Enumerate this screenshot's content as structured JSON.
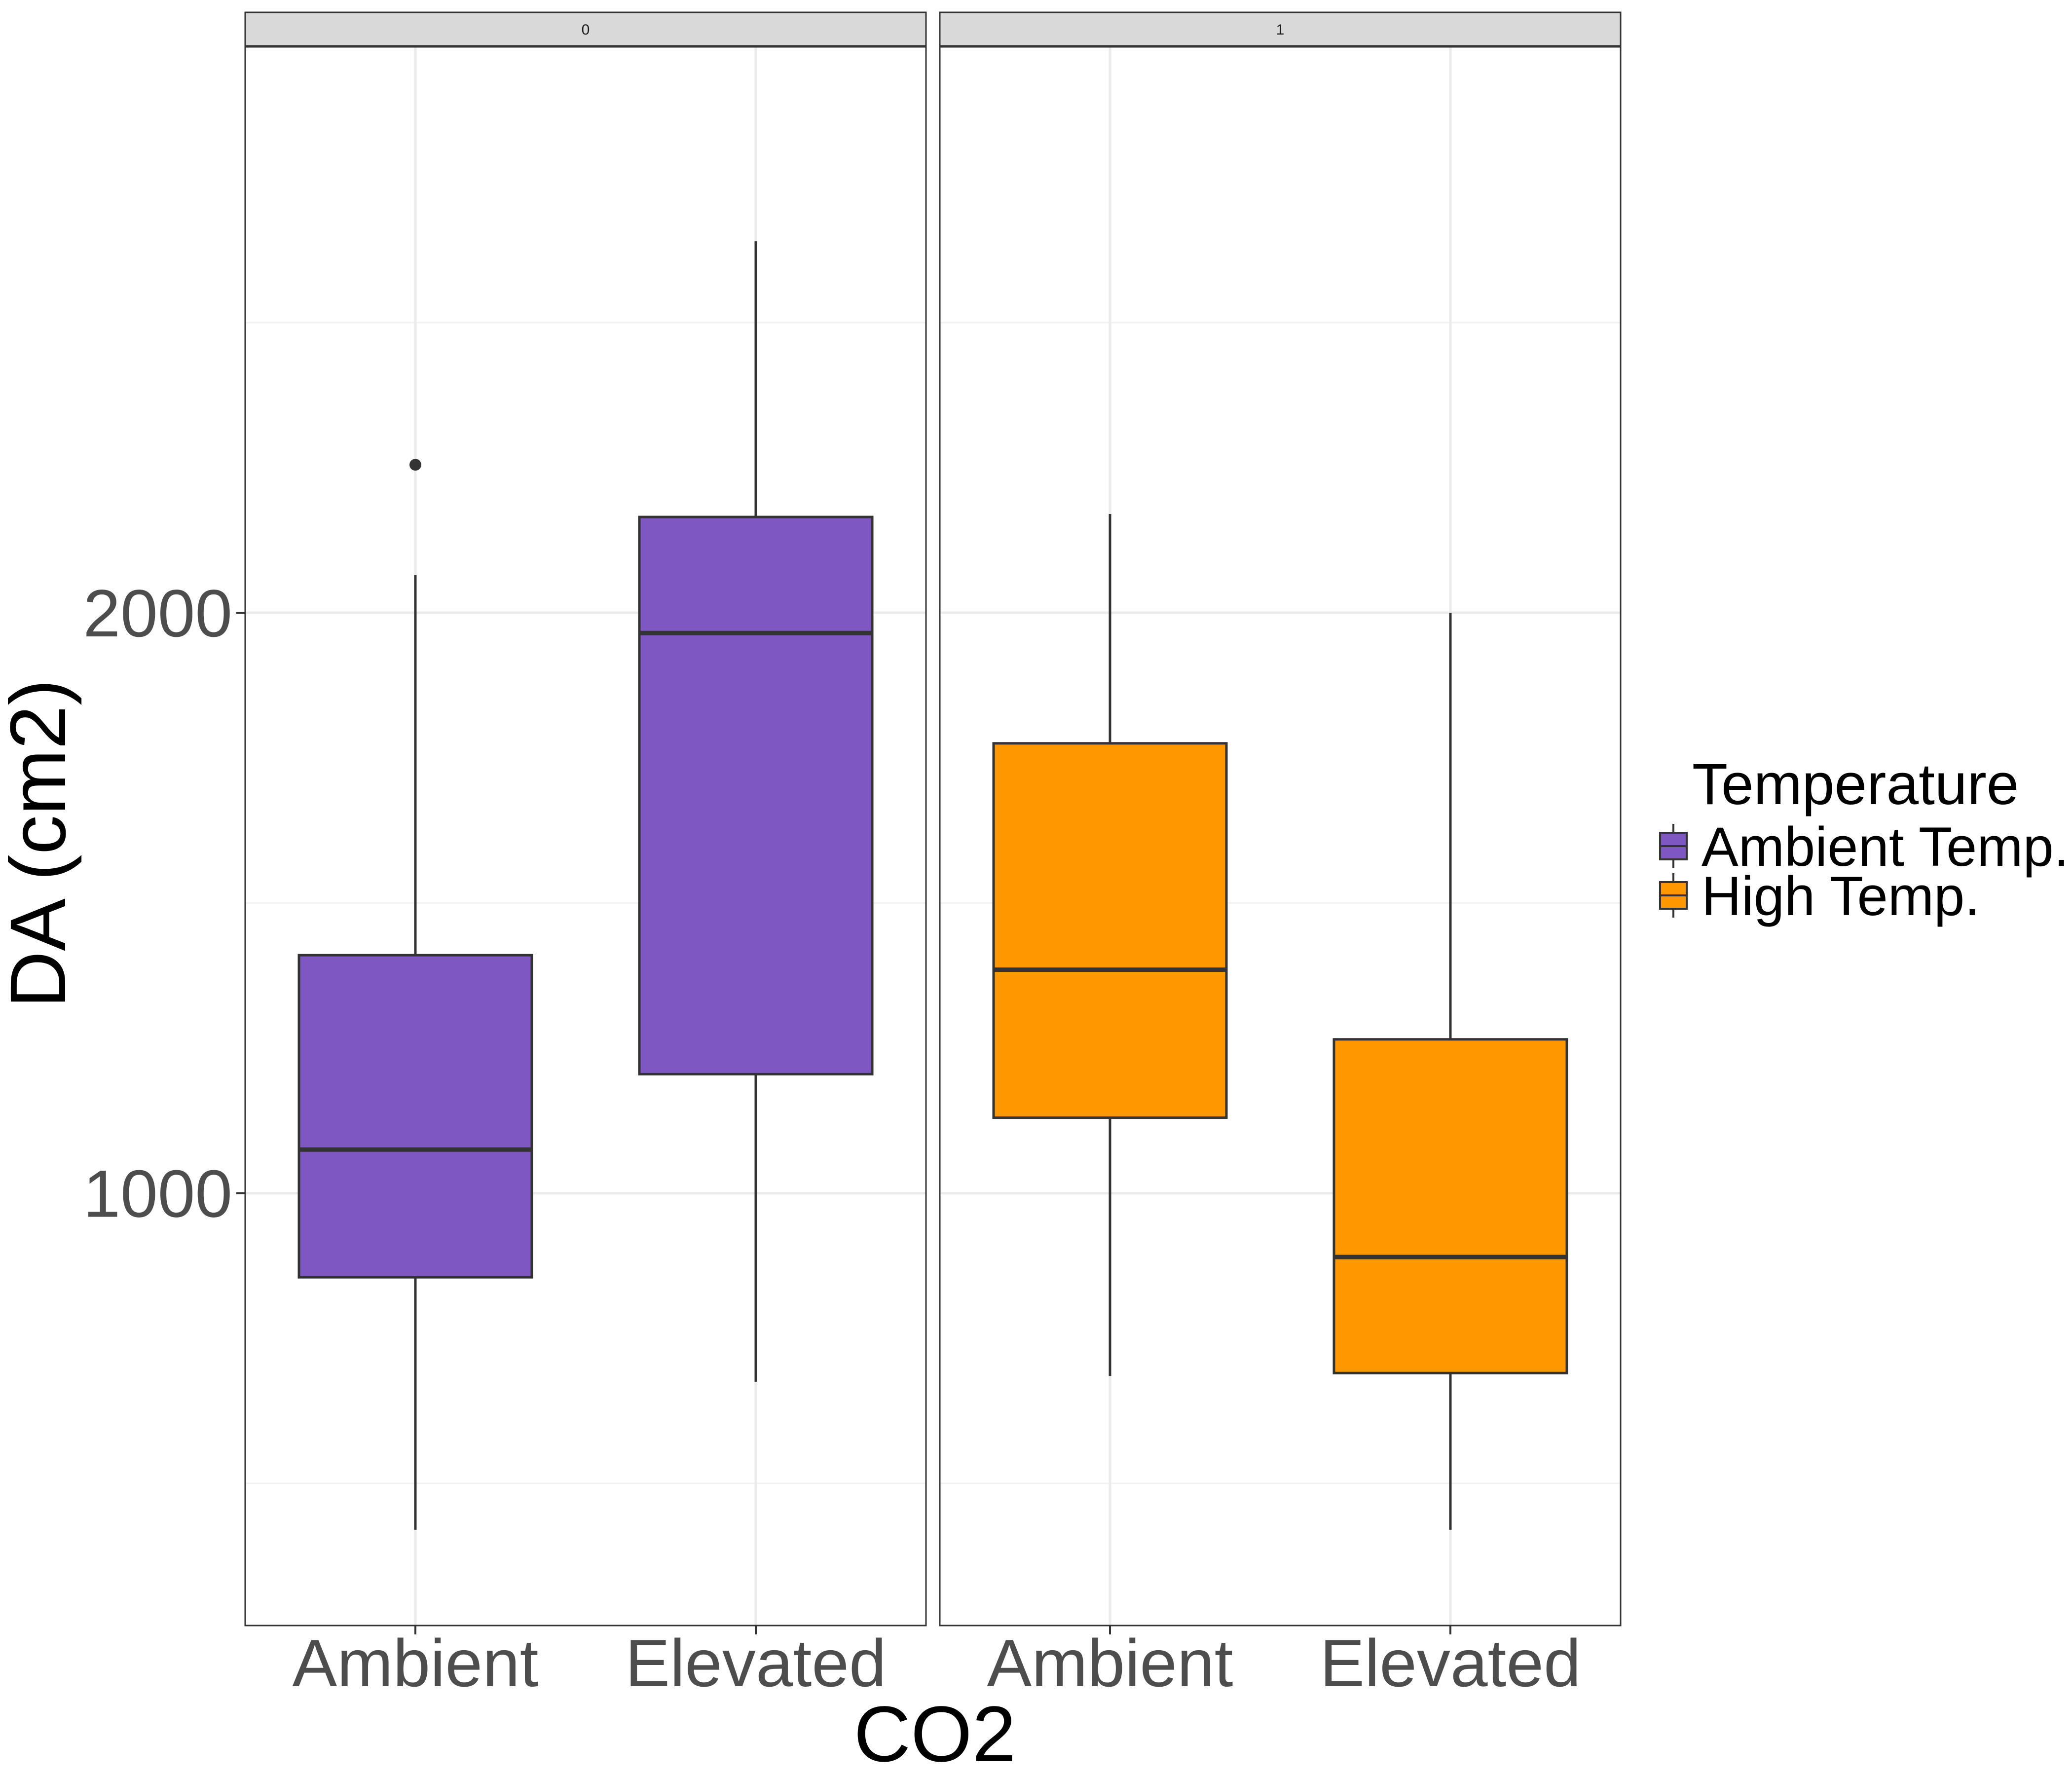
{
  "chart_data": {
    "type": "boxplot",
    "title": "",
    "xlabel": "CO2",
    "ylabel": "DA (cm2)",
    "ylim": [
      255,
      2975
    ],
    "y_ticks": [
      1000,
      2000
    ],
    "y_tick_labels": [
      "1000",
      "2000"
    ],
    "y_minor_gridlines": [
      500,
      1500,
      2500
    ],
    "grid": true,
    "facets": [
      {
        "label": "0",
        "categories": [
          "Ambient",
          "Elevated"
        ],
        "boxes": [
          {
            "category": "Ambient",
            "group": "Ambient Temp.",
            "min": 420,
            "q1": 855,
            "median": 1075,
            "q3": 1410,
            "max": 2065,
            "outliers": [
              2255
            ]
          },
          {
            "category": "Elevated",
            "group": "Ambient Temp.",
            "min": 675,
            "q1": 1205,
            "median": 1965,
            "q3": 2165,
            "max": 2640,
            "outliers": []
          }
        ]
      },
      {
        "label": "1",
        "categories": [
          "Ambient",
          "Elevated"
        ],
        "boxes": [
          {
            "category": "Ambient",
            "group": "High Temp.",
            "min": 685,
            "q1": 1130,
            "median": 1385,
            "q3": 1775,
            "max": 2170,
            "outliers": []
          },
          {
            "category": "Elevated",
            "group": "High Temp.",
            "min": 420,
            "q1": 690,
            "median": 890,
            "q3": 1265,
            "max": 2000,
            "outliers": []
          }
        ]
      }
    ],
    "legend": {
      "title": "Temperature",
      "position": "right",
      "entries": [
        {
          "label": "Ambient Temp.",
          "color": "#7E57C2"
        },
        {
          "label": "High Temp.",
          "color": "#FF9800"
        }
      ]
    },
    "colors": {
      "Ambient Temp.": "#7E57C2",
      "High Temp.": "#FF9800"
    }
  }
}
